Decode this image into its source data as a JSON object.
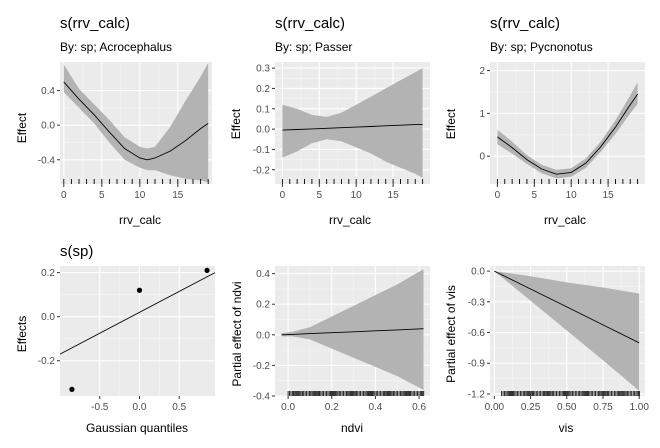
{
  "chart_data": [
    {
      "type": "line",
      "title": "s(rrv_calc)",
      "subtitle": "By: sp; Acrocephalus",
      "xlabel": "rrv_calc",
      "ylabel": "Effect",
      "xlim": [
        -0.5,
        19.5
      ],
      "ylim": [
        -0.68,
        0.73
      ],
      "xticks": [
        0,
        5,
        10,
        15
      ],
      "yticks": [
        0.4,
        0.0,
        -0.4
      ],
      "ytick_labels": [
        "0.4",
        "0.0",
        "-0.4"
      ],
      "grid": true,
      "x": [
        0,
        2,
        4,
        6,
        8,
        10,
        11,
        12,
        14,
        16,
        18,
        19
      ],
      "y": [
        0.5,
        0.3,
        0.12,
        -0.08,
        -0.27,
        -0.38,
        -0.4,
        -0.38,
        -0.3,
        -0.18,
        -0.04,
        0.02
      ],
      "lower": [
        0.38,
        0.2,
        0.02,
        -0.2,
        -0.4,
        -0.49,
        -0.52,
        -0.52,
        -0.58,
        -0.62,
        -0.64,
        -0.66
      ],
      "upper": [
        0.7,
        0.42,
        0.24,
        0.06,
        -0.14,
        -0.25,
        -0.27,
        -0.25,
        -0.02,
        0.28,
        0.56,
        0.72
      ],
      "rug": [
        0,
        1,
        2,
        3,
        4,
        5,
        6,
        7,
        8,
        9,
        10,
        11,
        12,
        13,
        14,
        15,
        16,
        17,
        18,
        19
      ]
    },
    {
      "type": "line",
      "title": "s(rrv_calc)",
      "subtitle": "By: sp; Passer",
      "xlabel": "rrv_calc",
      "ylabel": "Effect",
      "xlim": [
        -1,
        20
      ],
      "ylim": [
        -0.27,
        0.33
      ],
      "xticks": [
        0,
        5,
        10,
        15
      ],
      "yticks": [
        0.3,
        0.2,
        0.1,
        0.0,
        -0.1,
        -0.2
      ],
      "ytick_labels": [
        "0.3",
        "0.2",
        "0.1",
        "0.0",
        "-0.1",
        "-0.2"
      ],
      "grid": true,
      "x": [
        0,
        2,
        4,
        6,
        8,
        10,
        12,
        14,
        16,
        18,
        19
      ],
      "y": [
        -0.005,
        -0.002,
        0.001,
        0.004,
        0.007,
        0.01,
        0.013,
        0.016,
        0.019,
        0.022,
        0.023
      ],
      "lower": [
        -0.14,
        -0.11,
        -0.07,
        -0.05,
        -0.06,
        -0.09,
        -0.12,
        -0.16,
        -0.19,
        -0.22,
        -0.24
      ],
      "upper": [
        0.12,
        0.1,
        0.07,
        0.06,
        0.08,
        0.12,
        0.16,
        0.2,
        0.24,
        0.28,
        0.3
      ],
      "rug": [
        0,
        1,
        2,
        3,
        4,
        5,
        6,
        7,
        8,
        9,
        10,
        11,
        12,
        13,
        14,
        15,
        16,
        17,
        18,
        19
      ]
    },
    {
      "type": "line",
      "title": "s(rrv_calc)",
      "subtitle": "By: sp; Pycnonotus",
      "xlabel": "rrv_calc",
      "ylabel": "Effect",
      "xlim": [
        -1,
        20
      ],
      "ylim": [
        -0.65,
        2.2
      ],
      "xticks": [
        0,
        5,
        10,
        15
      ],
      "yticks": [
        2,
        1,
        0
      ],
      "ytick_labels": [
        "2",
        "1",
        "0"
      ],
      "grid": true,
      "x": [
        0,
        2,
        4,
        6,
        8,
        10,
        12,
        14,
        16,
        18,
        19
      ],
      "y": [
        0.45,
        0.2,
        -0.08,
        -0.3,
        -0.42,
        -0.38,
        -0.16,
        0.22,
        0.68,
        1.2,
        1.45
      ],
      "lower": [
        0.28,
        0.06,
        -0.18,
        -0.4,
        -0.52,
        -0.48,
        -0.27,
        0.1,
        0.52,
        1.0,
        1.22
      ],
      "upper": [
        0.62,
        0.34,
        0.02,
        -0.2,
        -0.32,
        -0.28,
        -0.05,
        0.34,
        0.84,
        1.42,
        1.72
      ],
      "rug": [
        0,
        1,
        2,
        3,
        4,
        5,
        6,
        7,
        8,
        9,
        10,
        11,
        12,
        13,
        14,
        15,
        16,
        17,
        18,
        19
      ]
    },
    {
      "type": "scatter",
      "title": "s(sp)",
      "xlabel": "Gaussian quantiles",
      "ylabel": "Effects",
      "xlim": [
        -1.0,
        0.95
      ],
      "ylim": [
        -0.36,
        0.23
      ],
      "xticks": [
        -0.5,
        0.0,
        0.5
      ],
      "xtick_labels": [
        "-0.5",
        "0.0",
        "0.5"
      ],
      "yticks": [
        0.2,
        0.0,
        -0.2
      ],
      "ytick_labels": [
        "0.2",
        "0.0",
        "-0.2"
      ],
      "grid": true,
      "points": [
        {
          "x": -0.85,
          "y": -0.33
        },
        {
          "x": 0.0,
          "y": 0.12
        },
        {
          "x": 0.85,
          "y": 0.21
        }
      ],
      "reference_line": {
        "x": [
          -1.0,
          0.95
        ],
        "y": [
          -0.17,
          0.2
        ]
      }
    },
    {
      "type": "line",
      "xlabel": "ndvi",
      "ylabel": "Partial effect of ndvi",
      "xlim": [
        -0.06,
        0.65
      ],
      "ylim": [
        -0.4,
        0.45
      ],
      "xticks": [
        0.0,
        0.2,
        0.4,
        0.6
      ],
      "xtick_labels": [
        "0.0",
        "0.2",
        "0.4",
        "0.6"
      ],
      "yticks": [
        0.4,
        0.2,
        0.0,
        -0.2,
        -0.4
      ],
      "ytick_labels": [
        "0.4",
        "0.2",
        "0.0",
        "-0.2",
        "-0.4"
      ],
      "grid": true,
      "x": [
        -0.03,
        0.02,
        0.1,
        0.2,
        0.3,
        0.4,
        0.5,
        0.62
      ],
      "y": [
        0.0,
        0.003,
        0.008,
        0.014,
        0.02,
        0.026,
        0.032,
        0.04
      ],
      "lower": [
        -0.01,
        -0.01,
        -0.03,
        -0.09,
        -0.15,
        -0.21,
        -0.27,
        -0.36
      ],
      "upper": [
        0.01,
        0.02,
        0.05,
        0.12,
        0.19,
        0.26,
        0.33,
        0.43
      ],
      "rug_range": [
        0.0,
        0.62
      ]
    },
    {
      "type": "line",
      "xlabel": "vis",
      "ylabel": "Partial effect of vis",
      "xlim": [
        -0.03,
        1.04
      ],
      "ylim": [
        -1.22,
        0.05
      ],
      "xticks": [
        0.0,
        0.25,
        0.5,
        0.75,
        1.0
      ],
      "xtick_labels": [
        "0.00",
        "0.25",
        "0.50",
        "0.75",
        "1.00"
      ],
      "yticks": [
        0.0,
        -0.3,
        -0.6,
        -0.9,
        -1.2
      ],
      "ytick_labels": [
        "0.0",
        "-0.3",
        "-0.6",
        "-0.9",
        "-1.2"
      ],
      "grid": true,
      "x": [
        0.0,
        0.25,
        0.5,
        0.75,
        1.0
      ],
      "y": [
        0.0,
        -0.175,
        -0.35,
        -0.525,
        -0.7
      ],
      "lower": [
        0.0,
        -0.29,
        -0.58,
        -0.87,
        -1.17
      ],
      "upper": [
        0.0,
        -0.05,
        -0.11,
        -0.16,
        -0.22
      ],
      "rug_range": [
        0.05,
        1.0
      ]
    }
  ]
}
